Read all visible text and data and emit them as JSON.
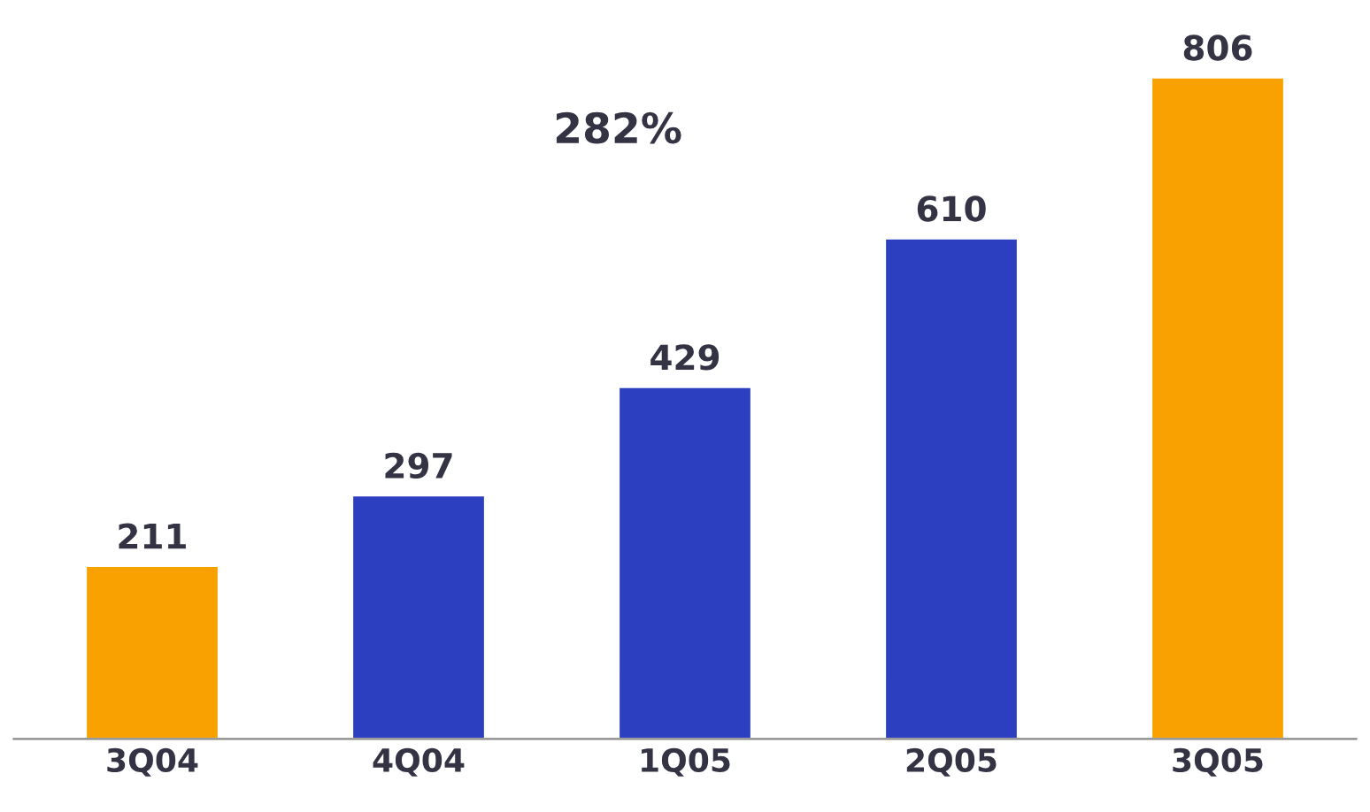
{
  "chart_data": {
    "type": "bar",
    "categories": [
      "3Q04",
      "4Q04",
      "1Q05",
      "2Q05",
      "3Q05"
    ],
    "values": [
      211,
      297,
      429,
      610,
      806
    ],
    "colors": [
      "#f9a100",
      "#2b3fc0",
      "#2b3fc0",
      "#2b3fc0",
      "#f9a100"
    ],
    "data_labels": true,
    "annotations": [
      "282%"
    ]
  }
}
